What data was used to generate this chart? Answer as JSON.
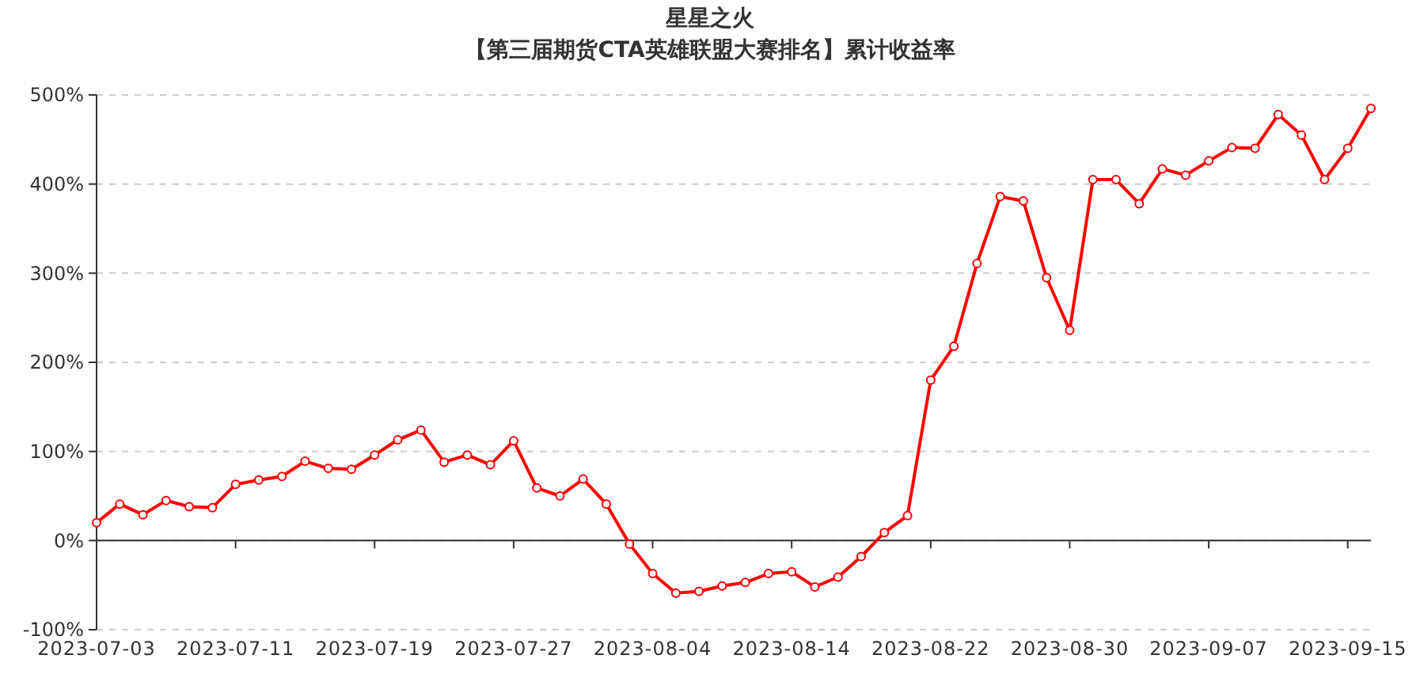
{
  "chart_data": {
    "type": "line",
    "title": "星星之火",
    "subtitle": "【第三届期货CTA英雄联盟大赛排名】累计收益率",
    "categories": [
      "2023-07-03",
      null,
      null,
      null,
      null,
      null,
      "2023-07-11",
      null,
      null,
      null,
      null,
      null,
      "2023-07-19",
      null,
      null,
      null,
      null,
      null,
      "2023-07-27",
      null,
      null,
      null,
      null,
      null,
      "2023-08-04",
      null,
      null,
      null,
      null,
      null,
      "2023-08-14",
      null,
      null,
      null,
      null,
      null,
      "2023-08-22",
      null,
      null,
      null,
      null,
      null,
      "2023-08-30",
      null,
      null,
      null,
      null,
      null,
      "2023-09-07",
      null,
      null,
      null,
      null,
      null,
      "2023-09-15",
      null
    ],
    "series": [
      {
        "color": "#ff0000",
        "values": [
          20,
          41,
          29,
          45,
          38,
          37,
          63,
          68,
          72,
          89,
          81,
          80,
          96,
          113,
          124,
          88,
          96,
          85,
          112,
          59,
          50,
          69,
          41,
          -4,
          -37,
          -59,
          -57,
          -51,
          -47,
          -37,
          -35,
          -52,
          -41,
          -18,
          9,
          28,
          180,
          218,
          311,
          386,
          381,
          295,
          236,
          405,
          405,
          378,
          417,
          410,
          426,
          441,
          440,
          478,
          455,
          405,
          440,
          485
        ]
      }
    ],
    "ylim": [
      -100,
      500
    ],
    "yticks": [
      {
        "value": -100,
        "label": "-100%"
      },
      {
        "value": 0,
        "label": "0%"
      },
      {
        "value": 100,
        "label": "100%"
      },
      {
        "value": 200,
        "label": "200%"
      },
      {
        "value": 300,
        "label": "300%"
      },
      {
        "value": 400,
        "label": "400%"
      },
      {
        "value": 500,
        "label": "500%"
      }
    ],
    "grid": "y",
    "marker": "circle",
    "line_style": "solid"
  }
}
